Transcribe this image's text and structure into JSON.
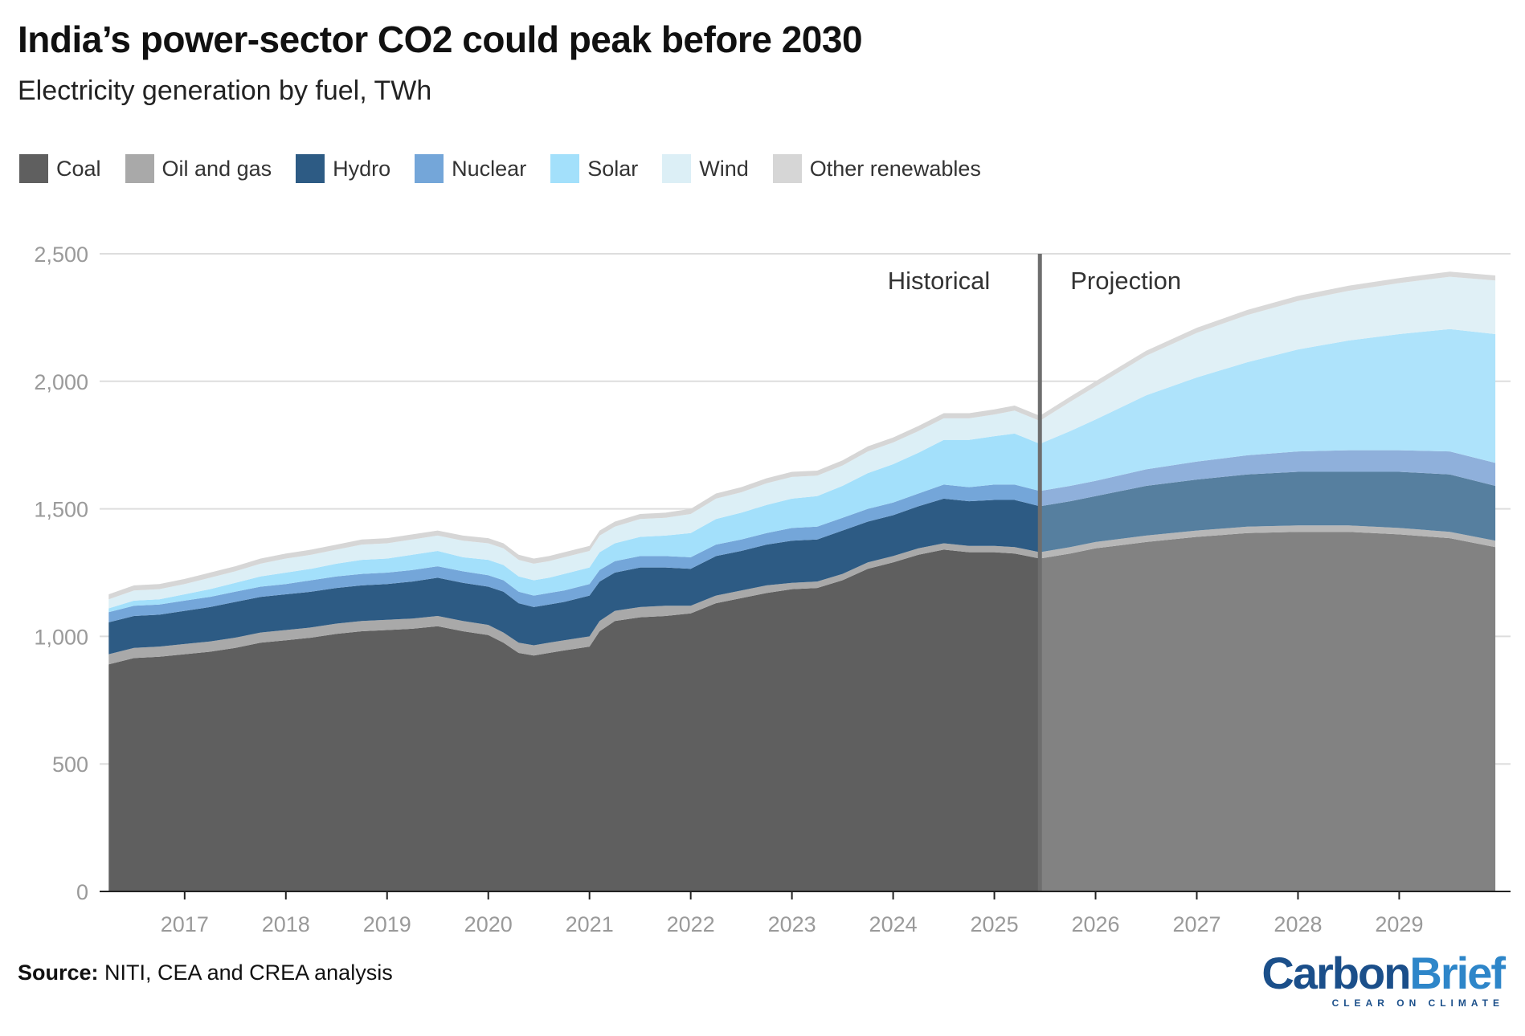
{
  "title": "India’s power-sector CO2 could peak before 2030",
  "subtitle": "Electricity generation by fuel, TWh",
  "legend": [
    {
      "label": "Coal",
      "color": "#5f5f5f"
    },
    {
      "label": "Oil and gas",
      "color": "#a9a9a9"
    },
    {
      "label": "Hydro",
      "color": "#2d5b84"
    },
    {
      "label": "Nuclear",
      "color": "#74a6d9"
    },
    {
      "label": "Solar",
      "color": "#a3e0fb"
    },
    {
      "label": "Wind",
      "color": "#dcefF6"
    },
    {
      "label": "Other renewables",
      "color": "#d6d6d6"
    }
  ],
  "source_label": "Source:",
  "source_text": "NITI, CEA and CREA analysis",
  "logo": {
    "part1": "Carbon",
    "part2": "Brief",
    "tagline": "CLEAR ON CLIMATE"
  },
  "chart_data": {
    "type": "area",
    "stacked": true,
    "title": "India’s power-sector CO2 could peak before 2030",
    "subtitle": "Electricity generation by fuel, TWh",
    "ylabel": "TWh",
    "ylim": [
      0,
      2500
    ],
    "yticks": [
      0,
      500,
      1000,
      1500,
      2000,
      2500
    ],
    "ytick_labels": [
      "0",
      "500",
      "1,000",
      "1,500",
      "2,000",
      "2,500"
    ],
    "xlim": [
      2016.16,
      2030.1
    ],
    "xticks": [
      2017,
      2018,
      2019,
      2020,
      2021,
      2022,
      2023,
      2024,
      2025,
      2026,
      2027,
      2028,
      2029
    ],
    "xtick_labels": [
      "2017",
      "2018",
      "2019",
      "2020",
      "2021",
      "2022",
      "2023",
      "2024",
      "2025",
      "2026",
      "2027",
      "2028",
      "2029"
    ],
    "split_x": 2025.45,
    "split_labels": {
      "left": "Historical",
      "right": "Projection"
    },
    "grid": true,
    "legend_position": "top",
    "colors": {
      "Coal": "#5f5f5f",
      "Oil and gas": "#a9a9a9",
      "Hydro": "#2d5b84",
      "Nuclear": "#74a6d9",
      "Solar": "#a3e0fb",
      "Wind": "#dcefF6",
      "Other renewables": "#d6d6d6"
    },
    "projection_colors": {
      "Coal": "#828282",
      "Oil and gas": "#b7b7b7",
      "Hydro": "#567f9f",
      "Nuclear": "#8fb0db",
      "Solar": "#aee3fb",
      "Wind": "#e0f0f6",
      "Other renewables": "#d9d9d9"
    },
    "x": [
      2016.25,
      2016.5,
      2016.75,
      2017.0,
      2017.25,
      2017.5,
      2017.75,
      2018.0,
      2018.25,
      2018.5,
      2018.75,
      2019.0,
      2019.25,
      2019.5,
      2019.75,
      2020.0,
      2020.15,
      2020.3,
      2020.45,
      2020.6,
      2020.75,
      2021.0,
      2021.1,
      2021.25,
      2021.5,
      2021.75,
      2022.0,
      2022.25,
      2022.5,
      2022.75,
      2023.0,
      2023.25,
      2023.5,
      2023.75,
      2024.0,
      2024.25,
      2024.5,
      2024.75,
      2025.0,
      2025.2,
      2025.45,
      2025.75,
      2026.0,
      2026.5,
      2027.0,
      2027.5,
      2028.0,
      2028.5,
      2029.0,
      2029.5,
      2029.95
    ],
    "series": [
      {
        "name": "Coal",
        "values": [
          890,
          915,
          920,
          930,
          940,
          955,
          975,
          985,
          995,
          1010,
          1020,
          1025,
          1030,
          1040,
          1020,
          1005,
          975,
          935,
          925,
          935,
          945,
          960,
          1020,
          1060,
          1075,
          1080,
          1090,
          1130,
          1150,
          1170,
          1185,
          1190,
          1220,
          1265,
          1290,
          1320,
          1340,
          1330,
          1330,
          1325,
          1305,
          1325,
          1345,
          1370,
          1390,
          1405,
          1410,
          1410,
          1400,
          1385,
          1350
        ]
      },
      {
        "name": "Oil and gas",
        "values": [
          40,
          40,
          40,
          40,
          40,
          40,
          40,
          40,
          40,
          40,
          40,
          40,
          40,
          40,
          40,
          40,
          40,
          40,
          40,
          40,
          40,
          40,
          40,
          40,
          40,
          40,
          30,
          30,
          30,
          30,
          25,
          25,
          25,
          25,
          25,
          25,
          25,
          25,
          25,
          25,
          25,
          25,
          25,
          25,
          25,
          25,
          25,
          25,
          25,
          25,
          25
        ]
      },
      {
        "name": "Hydro",
        "values": [
          125,
          125,
          125,
          130,
          135,
          140,
          140,
          140,
          140,
          140,
          140,
          140,
          145,
          150,
          150,
          150,
          160,
          155,
          150,
          150,
          150,
          160,
          155,
          150,
          155,
          150,
          145,
          155,
          155,
          160,
          165,
          165,
          170,
          160,
          160,
          165,
          175,
          175,
          180,
          185,
          180,
          180,
          180,
          195,
          200,
          205,
          210,
          210,
          220,
          225,
          215
        ]
      },
      {
        "name": "Nuclear",
        "values": [
          40,
          40,
          40,
          40,
          40,
          40,
          40,
          40,
          45,
          45,
          45,
          45,
          45,
          45,
          45,
          45,
          45,
          45,
          45,
          45,
          45,
          45,
          45,
          45,
          45,
          45,
          45,
          45,
          45,
          45,
          50,
          50,
          50,
          50,
          50,
          50,
          55,
          55,
          60,
          60,
          60,
          60,
          60,
          65,
          70,
          75,
          80,
          85,
          85,
          90,
          90
        ]
      },
      {
        "name": "Solar",
        "values": [
          15,
          20,
          20,
          25,
          30,
          35,
          40,
          45,
          45,
          50,
          55,
          55,
          60,
          60,
          55,
          60,
          60,
          60,
          60,
          60,
          65,
          65,
          70,
          70,
          75,
          80,
          95,
          100,
          105,
          110,
          115,
          120,
          125,
          140,
          150,
          160,
          175,
          185,
          190,
          200,
          185,
          215,
          240,
          290,
          330,
          365,
          400,
          430,
          455,
          480,
          505
        ]
      },
      {
        "name": "Wind",
        "values": [
          35,
          40,
          40,
          40,
          45,
          45,
          50,
          55,
          55,
          55,
          60,
          60,
          60,
          60,
          65,
          65,
          65,
          65,
          65,
          65,
          65,
          65,
          65,
          65,
          70,
          70,
          75,
          80,
          80,
          85,
          85,
          80,
          80,
          85,
          85,
          85,
          85,
          85,
          85,
          90,
          90,
          115,
          130,
          155,
          175,
          185,
          190,
          195,
          200,
          205,
          210
        ]
      },
      {
        "name": "Other renewables",
        "values": [
          20,
          20,
          20,
          20,
          20,
          20,
          20,
          20,
          20,
          20,
          20,
          20,
          20,
          20,
          20,
          20,
          20,
          20,
          20,
          20,
          20,
          20,
          20,
          20,
          20,
          20,
          20,
          20,
          20,
          20,
          20,
          20,
          20,
          20,
          20,
          20,
          20,
          20,
          20,
          20,
          20,
          20,
          20,
          20,
          20,
          20,
          20,
          20,
          20,
          20,
          20
        ]
      }
    ]
  }
}
